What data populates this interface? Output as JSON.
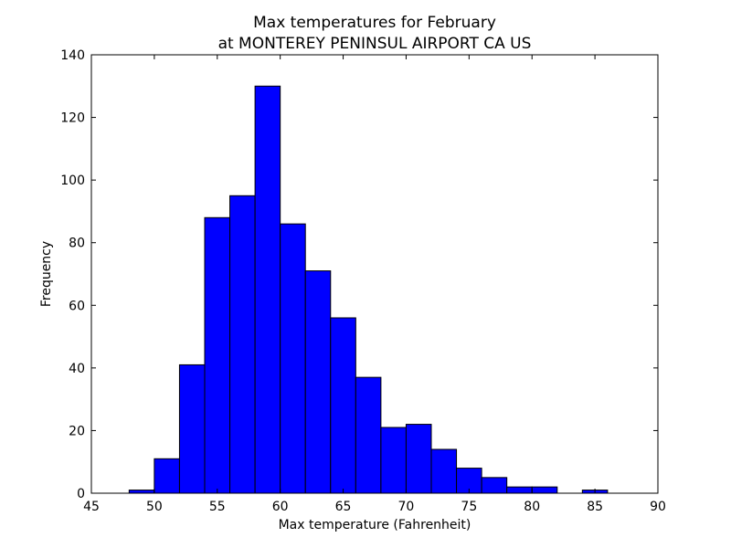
{
  "chart_data": {
    "type": "bar",
    "title": [
      "Max temperatures for February",
      "at MONTEREY PENINSUL AIRPORT CA US"
    ],
    "xlabel": "Max temperature (Fahrenheit)",
    "ylabel": "Frequency",
    "xlim": [
      45,
      90
    ],
    "ylim": [
      0,
      140
    ],
    "xticks": [
      45,
      50,
      55,
      60,
      65,
      70,
      75,
      80,
      85,
      90
    ],
    "yticks": [
      0,
      20,
      40,
      60,
      80,
      100,
      120,
      140
    ],
    "bin_edges": [
      48,
      50,
      52,
      54,
      56,
      58,
      60,
      62,
      64,
      66,
      68,
      70,
      72,
      74,
      76,
      78,
      80,
      82,
      84,
      86
    ],
    "values": [
      1,
      11,
      41,
      88,
      95,
      130,
      86,
      71,
      56,
      37,
      21,
      22,
      14,
      8,
      5,
      2,
      2,
      0,
      1
    ],
    "bar_color": "#0000ff",
    "edge_color": "#000000",
    "grid": false
  }
}
